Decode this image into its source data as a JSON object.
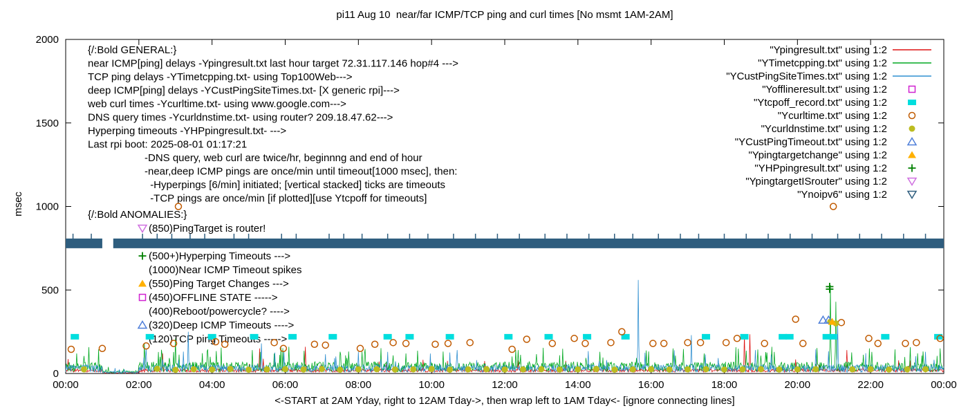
{
  "chart_data": {
    "type": "line",
    "title": "pi11 Aug 10  near/far ICMP/TCP ping and curl times [No msmt 1AM-2AM]",
    "ylabel": "msec",
    "xlabel": "<-START at 2AM Yday, right to 12AM Tday->, then wrap left to 1AM Tday<- [ignore connecting lines]",
    "ylim": [
      0,
      2000
    ],
    "xlim_hours": [
      0,
      24
    ],
    "grid": false,
    "legend_position": "top-right-inside",
    "yticks": [
      0,
      500,
      1000,
      1500,
      2000
    ],
    "xtick_labels": [
      "00:00",
      "02:00",
      "04:00",
      "06:00",
      "08:00",
      "10:00",
      "12:00",
      "14:00",
      "16:00",
      "18:00",
      "20:00",
      "22:00",
      "00:00"
    ],
    "legend": [
      {
        "label": "\"Ypingresult.txt\" using 1:2",
        "style": "line",
        "color": "#dd1010"
      },
      {
        "label": "\"YTimetcpping.txt\" using 1:2",
        "style": "line",
        "color": "#00a820"
      },
      {
        "label": "\"YCustPingSiteTimes.txt\" using 1:2",
        "style": "line",
        "color": "#2f8fd0"
      },
      {
        "label": "\"Yofflineresult.txt\" using 1:2",
        "style": "square-open",
        "color": "#d020d0"
      },
      {
        "label": "\"Ytcpoff_record.txt\" using 1:2",
        "style": "square-filled",
        "color": "#00dede"
      },
      {
        "label": "\"Ycurltime.txt\" using 1:2",
        "style": "circle-open",
        "color": "#c05a00"
      },
      {
        "label": "\"Ycurldnstime.txt\" using 1:2",
        "style": "circle-filled",
        "color": "#bcbc20"
      },
      {
        "label": "\"YCustPingTimeout.txt\" using 1:2",
        "style": "triangle-up-open",
        "color": "#4f7fd9"
      },
      {
        "label": "\"Ypingtargetchange\" using 1:2",
        "style": "triangle-up-filled",
        "color": "#ffb000"
      },
      {
        "label": "\"YHPpingresult.txt\" using 1:2",
        "style": "plus",
        "color": "#008000"
      },
      {
        "label": "\"YpingtargetISrouter\" using 1:2",
        "style": "triangle-down-open",
        "color": "#cf70e0"
      },
      {
        "label": "\"Ynoipv6\" using 1:2",
        "style": "triangle-down-open",
        "color": "#2e5d7e"
      }
    ],
    "annotations": {
      "general": [
        "{/:Bold GENERAL:}",
        "near ICMP[ping] delays -Ypingresult.txt last hour target 72.31.117.146 hop#4 --->",
        "TCP ping delays -YTimetcpping.txt- using Top100Web--->",
        "deep ICMP[ping] delays -YCustPingSiteTimes.txt- [X generic rpi]--->",
        "web curl times -Ycurltime.txt- using www.google.com--->",
        "DNS query times -Ycurldnstime.txt- using router? 209.18.47.62--->",
        "Hyperping timeouts -YHPpingresult.txt- --->",
        "Last rpi boot: 2025-08-01 01:17:21",
        "                    -DNS query, web curl are twice/hr, beginnng and end of hour",
        "                    -near,deep ICMP pings are once/min until timeout[1000 msec], then:",
        "                      -Hyperpings [6/min] initiated; [vertical stacked] ticks are timeouts",
        "                      -TCP pings are once/min [if plotted][use Ytcpoff for timeouts]"
      ],
      "anomalies_header": "{/:Bold ANOMALIES:}",
      "anomalies": [
        {
          "marker": "triangle-down-open",
          "color": "#cf70e0",
          "text": "(850)PingTarget is router!"
        },
        {
          "marker": null,
          "color": null,
          "text": ""
        },
        {
          "marker": "plus",
          "color": "#008000",
          "text": "(500+)Hyperping Timeouts --->"
        },
        {
          "marker": null,
          "color": null,
          "text": "(1000)Near ICMP Timeout spikes"
        },
        {
          "marker": "triangle-up-filled",
          "color": "#ffb000",
          "text": "(550)Ping Target Changes --->"
        },
        {
          "marker": "square-open",
          "color": "#d020d0",
          "text": "(450)OFFLINE STATE ----->"
        },
        {
          "marker": null,
          "color": null,
          "text": "(400)Reboot/powercycle? ---->"
        },
        {
          "marker": "triangle-up-open",
          "color": "#4f7fd9",
          "text": "(320)Deep ICMP Timeouts ---->"
        },
        {
          "marker": null,
          "color": null,
          "text": "(120)TCP ping Timeouts ----->"
        }
      ]
    },
    "series": [
      {
        "name": "Ypingresult.txt",
        "type": "noisy-line",
        "color": "#dd1010",
        "base": 8,
        "amp": 20,
        "burst_chance": 0.02,
        "burst_base": 40,
        "burst_amp": 50,
        "spikes": [
          [
            2.65,
            120
          ],
          [
            5.3,
            150
          ],
          [
            6.55,
            160
          ],
          [
            18.55,
            230
          ],
          [
            18.7,
            235
          ],
          [
            21.35,
            140
          ]
        ]
      },
      {
        "name": "YTimetcpping.txt",
        "type": "noisy-line",
        "color": "#00a820",
        "base": 10,
        "amp": 60,
        "burst_chance": 0.05,
        "burst_base": 90,
        "burst_amp": 70,
        "spikes": [
          [
            0.3,
            120
          ],
          [
            2.15,
            180
          ],
          [
            3.0,
            210
          ],
          [
            5.1,
            140
          ],
          [
            6.1,
            160
          ],
          [
            7.5,
            130
          ],
          [
            9.3,
            120
          ],
          [
            12.3,
            140
          ],
          [
            14.6,
            130
          ],
          [
            16.6,
            150
          ],
          [
            19.3,
            160
          ],
          [
            20.9,
            530
          ],
          [
            21.05,
            430
          ],
          [
            23.9,
            150
          ]
        ]
      },
      {
        "name": "YCustPingSiteTimes.txt",
        "type": "noisy-line",
        "color": "#2f8fd0",
        "base": 8,
        "amp": 45,
        "burst_chance": 0.03,
        "burst_base": 70,
        "burst_amp": 70,
        "spikes": [
          [
            2.2,
            150
          ],
          [
            3.35,
            250
          ],
          [
            5.35,
            180
          ],
          [
            8.0,
            130
          ],
          [
            10.7,
            140
          ],
          [
            15.65,
            560
          ],
          [
            17.1,
            230
          ],
          [
            18.85,
            140
          ],
          [
            20.5,
            145
          ],
          [
            21.1,
            300
          ],
          [
            23.5,
            130
          ]
        ]
      },
      {
        "name": "Yofflineresult.txt",
        "type": "points",
        "marker": "square-open",
        "color": "#d020d0",
        "points": []
      },
      {
        "name": "Ytcpoff_record.txt",
        "type": "points",
        "marker": "square-filled",
        "color": "#00dede",
        "points": [
          [
            0.25,
            220
          ],
          [
            2.3,
            220
          ],
          [
            4.0,
            220
          ],
          [
            5.15,
            220
          ],
          [
            6.2,
            220
          ],
          [
            7.3,
            220
          ],
          [
            8.8,
            220
          ],
          [
            9.4,
            220
          ],
          [
            10.5,
            220
          ],
          [
            12.1,
            220
          ],
          [
            13.2,
            220
          ],
          [
            14.25,
            220
          ],
          [
            15.3,
            220
          ],
          [
            17.5,
            220
          ],
          [
            18.55,
            220
          ],
          [
            19.6,
            220
          ],
          [
            19.78,
            220
          ],
          [
            20.8,
            220
          ],
          [
            20.97,
            220
          ],
          [
            22.4,
            220
          ],
          [
            23.85,
            220
          ]
        ]
      },
      {
        "name": "Ycurltime.txt",
        "type": "points",
        "marker": "circle-open",
        "color": "#c05a00",
        "points": [
          [
            0.15,
            145
          ],
          [
            1.0,
            150
          ],
          [
            2.2,
            165
          ],
          [
            2.95,
            180
          ],
          [
            3.08,
            1000
          ],
          [
            4.1,
            190
          ],
          [
            4.35,
            175
          ],
          [
            5.7,
            185
          ],
          [
            5.95,
            150
          ],
          [
            6.8,
            175
          ],
          [
            7.1,
            170
          ],
          [
            8.05,
            150
          ],
          [
            8.45,
            175
          ],
          [
            8.95,
            185
          ],
          [
            9.3,
            180
          ],
          [
            10.1,
            175
          ],
          [
            10.45,
            180
          ],
          [
            11.05,
            185
          ],
          [
            12.2,
            145
          ],
          [
            12.6,
            205
          ],
          [
            13.3,
            180
          ],
          [
            13.9,
            210
          ],
          [
            14.2,
            180
          ],
          [
            14.9,
            185
          ],
          [
            15.2,
            250
          ],
          [
            16.05,
            180
          ],
          [
            16.35,
            180
          ],
          [
            17.0,
            185
          ],
          [
            17.35,
            185
          ],
          [
            18.05,
            185
          ],
          [
            18.35,
            210
          ],
          [
            19.1,
            180
          ],
          [
            19.95,
            325
          ],
          [
            20.15,
            180
          ],
          [
            20.98,
            1000
          ],
          [
            21.2,
            305
          ],
          [
            21.95,
            210
          ],
          [
            22.2,
            180
          ],
          [
            22.95,
            180
          ],
          [
            23.25,
            185
          ],
          [
            23.9,
            210
          ]
        ]
      },
      {
        "name": "Ycurldnstime.txt",
        "type": "points",
        "marker": "circle-filled",
        "color": "#bcbc20",
        "points": [
          [
            0.5,
            25
          ],
          [
            2.5,
            28
          ],
          [
            3.0,
            22
          ],
          [
            3.5,
            26
          ],
          [
            4.0,
            24
          ],
          [
            4.5,
            27
          ],
          [
            5.0,
            23
          ],
          [
            5.5,
            25
          ],
          [
            6.0,
            26
          ],
          [
            6.5,
            24
          ],
          [
            7.0,
            27
          ],
          [
            7.5,
            23
          ],
          [
            8.0,
            25
          ],
          [
            8.5,
            26
          ],
          [
            9.0,
            24
          ],
          [
            9.5,
            25
          ],
          [
            10.0,
            27
          ],
          [
            10.5,
            23
          ],
          [
            11.0,
            25
          ],
          [
            11.5,
            26
          ],
          [
            12.0,
            24
          ],
          [
            12.5,
            25
          ],
          [
            13.0,
            26
          ],
          [
            13.5,
            24
          ],
          [
            14.0,
            25
          ],
          [
            14.5,
            27
          ],
          [
            15.0,
            23
          ],
          [
            15.5,
            25
          ],
          [
            16.0,
            26
          ],
          [
            16.5,
            24
          ],
          [
            17.0,
            25
          ],
          [
            17.5,
            26
          ],
          [
            18.0,
            24
          ],
          [
            18.5,
            25
          ],
          [
            19.0,
            26
          ],
          [
            19.5,
            24
          ],
          [
            20.0,
            25
          ],
          [
            20.5,
            26
          ],
          [
            20.9,
            310
          ],
          [
            21.05,
            300
          ],
          [
            21.5,
            25
          ],
          [
            22.0,
            26
          ],
          [
            22.5,
            24
          ],
          [
            23.0,
            25
          ],
          [
            23.5,
            26
          ]
        ]
      },
      {
        "name": "YCustPingTimeout.txt",
        "type": "points",
        "marker": "triangle-up-open",
        "color": "#4f7fd9",
        "points": [
          [
            20.7,
            320
          ],
          [
            20.85,
            320
          ]
        ]
      },
      {
        "name": "Ypingtargetchange",
        "type": "points",
        "marker": "triangle-up-filled",
        "color": "#ffb000",
        "points": [
          [
            20.95,
            310
          ]
        ]
      },
      {
        "name": "YHPpingresult.txt",
        "type": "points",
        "marker": "plus",
        "color": "#008000",
        "points": [
          [
            20.88,
            505
          ],
          [
            20.88,
            520
          ]
        ]
      },
      {
        "name": "YpingtargetISrouter",
        "type": "points",
        "marker": "triangle-down-open",
        "color": "#cf70e0",
        "points": []
      },
      {
        "name": "Ynoipv6",
        "type": "band",
        "marker": "triangle-down-open",
        "color": "#2e5d7e",
        "band_msec": [
          750,
          808
        ],
        "gap_hours": [
          1.0,
          1.3
        ],
        "tick_xs": [
          0.2,
          0.7,
          2.1,
          2.5,
          2.9,
          3.4,
          3.8,
          4.6,
          5.0,
          5.9,
          6.3,
          7.2,
          7.6,
          8.1,
          8.8,
          9.4,
          9.9,
          10.6,
          11.2,
          11.8,
          12.4,
          13.1,
          13.7,
          14.3,
          15.0,
          15.5,
          16.2,
          16.8,
          17.3,
          18.0,
          18.6,
          19.2,
          19.8,
          20.4,
          21.1,
          21.7,
          22.3,
          22.9,
          23.5
        ]
      }
    ]
  }
}
